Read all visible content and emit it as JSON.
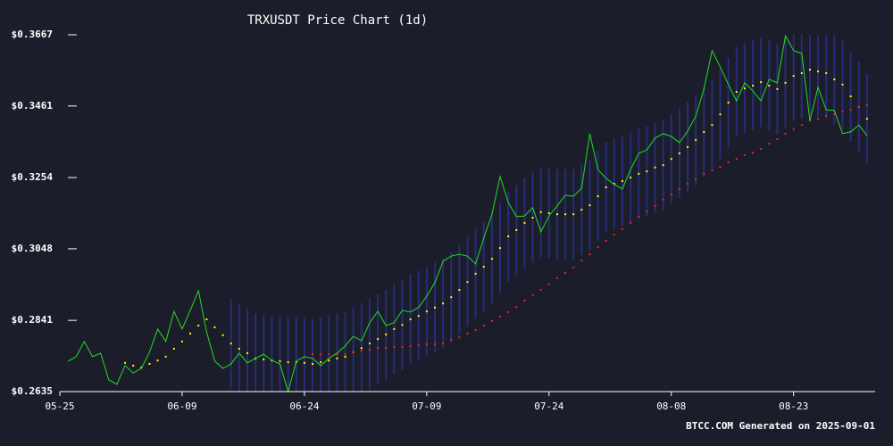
{
  "chart_data": {
    "type": "line",
    "title": "TRXUSDT Price Chart (1d)",
    "footer": "BTCC.COM Generated on 2025-09-01",
    "x": [
      "05-26",
      "05-27",
      "05-28",
      "05-29",
      "05-30",
      "05-31",
      "06-01",
      "06-02",
      "06-03",
      "06-04",
      "06-05",
      "06-06",
      "06-07",
      "06-08",
      "06-09",
      "06-10",
      "06-11",
      "06-12",
      "06-13",
      "06-14",
      "06-15",
      "06-16",
      "06-17",
      "06-18",
      "06-19",
      "06-20",
      "06-21",
      "06-22",
      "06-23",
      "06-24",
      "06-25",
      "06-26",
      "06-27",
      "06-28",
      "06-29",
      "06-30",
      "07-01",
      "07-02",
      "07-03",
      "07-04",
      "07-05",
      "07-06",
      "07-07",
      "07-08",
      "07-09",
      "07-10",
      "07-11",
      "07-12",
      "07-13",
      "07-14",
      "07-15",
      "07-16",
      "07-17",
      "07-18",
      "07-19",
      "07-20",
      "07-21",
      "07-22",
      "07-23",
      "07-24",
      "07-25",
      "07-26",
      "07-27",
      "07-28",
      "07-29",
      "07-30",
      "07-31",
      "08-01",
      "08-02",
      "08-03",
      "08-04",
      "08-05",
      "08-06",
      "08-07",
      "08-08",
      "08-09",
      "08-10",
      "08-11",
      "08-12",
      "08-13",
      "08-14",
      "08-15",
      "08-16",
      "08-17",
      "08-18",
      "08-19",
      "08-20",
      "08-21",
      "08-22",
      "08-23",
      "08-24",
      "08-25",
      "08-26",
      "08-27",
      "08-28",
      "08-29",
      "08-30",
      "08-31",
      "09-01"
    ],
    "xlim": [
      "05-25",
      "09-02"
    ],
    "xticks": [
      "05-25",
      "06-09",
      "06-24",
      "07-09",
      "07-24",
      "08-08",
      "08-23"
    ],
    "ylim": [
      0.2635,
      0.3667
    ],
    "yticks": [
      {
        "value": 0.2635,
        "label": "$0.2635"
      },
      {
        "value": 0.2841,
        "label": "$0.2841"
      },
      {
        "value": 0.3048,
        "label": "$0.3048"
      },
      {
        "value": 0.3254,
        "label": "$0.3254"
      },
      {
        "value": 0.3461,
        "label": "$0.3461"
      },
      {
        "value": 0.3667,
        "label": "$0.3667"
      }
    ],
    "band": {
      "color": "#2a2f86",
      "upper": [
        null,
        null,
        null,
        null,
        null,
        null,
        null,
        null,
        null,
        null,
        null,
        null,
        null,
        null,
        null,
        null,
        null,
        null,
        null,
        null,
        0.2904,
        0.2889,
        0.2876,
        0.2861,
        0.2858,
        0.2855,
        0.2853,
        0.285,
        0.285,
        0.2848,
        0.2845,
        0.285,
        0.2855,
        0.2861,
        0.2866,
        0.2879,
        0.2891,
        0.2904,
        0.2917,
        0.293,
        0.2946,
        0.2958,
        0.2974,
        0.2984,
        0.2997,
        0.3008,
        0.302,
        0.3038,
        0.3059,
        0.3082,
        0.3106,
        0.3126,
        0.3149,
        0.318,
        0.3214,
        0.3232,
        0.3253,
        0.3268,
        0.3284,
        0.3281,
        0.3278,
        0.3278,
        0.3278,
        0.3291,
        0.3304,
        0.333,
        0.3356,
        0.3366,
        0.3374,
        0.3384,
        0.3395,
        0.3402,
        0.3413,
        0.342,
        0.3438,
        0.3454,
        0.3472,
        0.3493,
        0.3516,
        0.3536,
        0.3567,
        0.3601,
        0.3632,
        0.3642,
        0.365,
        0.366,
        0.365,
        0.364,
        0.3658,
        0.3678,
        0.3686,
        0.3696,
        0.3691,
        0.3686,
        0.3668,
        0.3653,
        0.3619,
        0.3588,
        0.3554
      ],
      "lower": [
        null,
        null,
        null,
        null,
        null,
        null,
        null,
        null,
        null,
        null,
        null,
        null,
        null,
        null,
        null,
        null,
        null,
        null,
        null,
        null,
        0.2644,
        0.2629,
        0.2616,
        0.2601,
        0.2598,
        0.2595,
        0.2593,
        0.259,
        0.259,
        0.2588,
        0.2585,
        0.259,
        0.2595,
        0.2601,
        0.2606,
        0.2619,
        0.2631,
        0.2644,
        0.2657,
        0.267,
        0.2686,
        0.2698,
        0.2714,
        0.2724,
        0.2737,
        0.2748,
        0.276,
        0.2778,
        0.2799,
        0.2822,
        0.2846,
        0.2866,
        0.2889,
        0.292,
        0.2954,
        0.2972,
        0.2993,
        0.3008,
        0.3024,
        0.3021,
        0.3018,
        0.3018,
        0.3018,
        0.3031,
        0.3044,
        0.307,
        0.3096,
        0.3106,
        0.3114,
        0.3124,
        0.3135,
        0.3142,
        0.3153,
        0.316,
        0.3178,
        0.3194,
        0.3212,
        0.3233,
        0.3256,
        0.3276,
        0.3307,
        0.3341,
        0.3372,
        0.3382,
        0.339,
        0.34,
        0.339,
        0.338,
        0.3398,
        0.3418,
        0.3426,
        0.3436,
        0.3431,
        0.3426,
        0.3408,
        0.3393,
        0.3359,
        0.3328,
        0.3294
      ]
    },
    "series": [
      {
        "color": "#22dd22",
        "style": "line",
        "values": [
          0.2723,
          0.2736,
          0.278,
          0.2736,
          0.2746,
          0.2669,
          0.2656,
          0.271,
          0.2689,
          0.2702,
          0.2749,
          0.2816,
          0.278,
          0.2867,
          0.2816,
          0.287,
          0.2927,
          0.2808,
          0.2723,
          0.2702,
          0.2715,
          0.2746,
          0.2718,
          0.2731,
          0.2743,
          0.2725,
          0.2715,
          0.2635,
          0.2723,
          0.2736,
          0.2731,
          0.271,
          0.2731,
          0.2746,
          0.2767,
          0.2795,
          0.2782,
          0.2834,
          0.2867,
          0.2826,
          0.2834,
          0.287,
          0.2865,
          0.2878,
          0.2911,
          0.295,
          0.3012,
          0.3027,
          0.3032,
          0.3027,
          0.3004,
          0.3079,
          0.3148,
          0.3257,
          0.3182,
          0.3141,
          0.3143,
          0.3167,
          0.3097,
          0.3143,
          0.3172,
          0.3203,
          0.32,
          0.3223,
          0.3381,
          0.3277,
          0.3252,
          0.3234,
          0.3221,
          0.3277,
          0.3324,
          0.3334,
          0.3368,
          0.3381,
          0.3373,
          0.3355,
          0.3388,
          0.3432,
          0.351,
          0.3621,
          0.3574,
          0.3523,
          0.3476,
          0.3528,
          0.3505,
          0.3476,
          0.3538,
          0.3528,
          0.3664,
          0.3621,
          0.3613,
          0.3419,
          0.3515,
          0.345,
          0.3448,
          0.3381,
          0.3386,
          0.3406,
          0.3376
        ]
      },
      {
        "color": "#ffff00",
        "style": "dots",
        "values": [
          null,
          null,
          null,
          null,
          null,
          null,
          null,
          0.2718,
          0.271,
          0.2705,
          0.2715,
          0.2725,
          0.2736,
          0.2759,
          0.278,
          0.2803,
          0.2826,
          0.2844,
          0.2821,
          0.2798,
          0.2774,
          0.2759,
          0.2746,
          0.2731,
          0.2728,
          0.2725,
          0.2723,
          0.272,
          0.272,
          0.2718,
          0.2715,
          0.272,
          0.2725,
          0.2731,
          0.2736,
          0.2749,
          0.2761,
          0.2774,
          0.2787,
          0.28,
          0.2816,
          0.2828,
          0.2844,
          0.2854,
          0.2867,
          0.2878,
          0.289,
          0.2908,
          0.2929,
          0.2952,
          0.2976,
          0.2996,
          0.3019,
          0.305,
          0.3084,
          0.3102,
          0.3123,
          0.3138,
          0.3154,
          0.3151,
          0.3148,
          0.3148,
          0.3148,
          0.3161,
          0.3174,
          0.32,
          0.3226,
          0.3236,
          0.3244,
          0.3254,
          0.3265,
          0.3272,
          0.3283,
          0.329,
          0.3308,
          0.3324,
          0.3342,
          0.3363,
          0.3386,
          0.3406,
          0.3437,
          0.3471,
          0.3502,
          0.3512,
          0.352,
          0.353,
          0.352,
          0.351,
          0.3528,
          0.3548,
          0.3556,
          0.3566,
          0.3561,
          0.3556,
          0.3538,
          0.3523,
          0.3489,
          0.3458,
          0.3424
        ]
      },
      {
        "color": "#ee2222",
        "style": "dots",
        "values": [
          null,
          null,
          null,
          null,
          null,
          null,
          null,
          null,
          null,
          null,
          null,
          null,
          null,
          null,
          null,
          null,
          null,
          null,
          null,
          null,
          null,
          null,
          null,
          null,
          null,
          null,
          null,
          null,
          null,
          null,
          0.2743,
          0.2743,
          0.2743,
          0.2743,
          0.2743,
          0.2749,
          0.2754,
          0.2756,
          0.2761,
          0.2761,
          0.2764,
          0.2764,
          0.2767,
          0.2769,
          0.2772,
          0.2772,
          0.2774,
          0.2785,
          0.2792,
          0.2803,
          0.2813,
          0.2826,
          0.2839,
          0.2852,
          0.2865,
          0.288,
          0.2898,
          0.2914,
          0.2929,
          0.2945,
          0.2963,
          0.2978,
          0.2994,
          0.3014,
          0.3032,
          0.3053,
          0.3071,
          0.3089,
          0.3105,
          0.3123,
          0.3141,
          0.3156,
          0.3172,
          0.319,
          0.3205,
          0.3221,
          0.3236,
          0.3249,
          0.3265,
          0.3275,
          0.3285,
          0.3298,
          0.3308,
          0.3319,
          0.3326,
          0.3337,
          0.3352,
          0.3365,
          0.3381,
          0.3394,
          0.3406,
          0.3419,
          0.3424,
          0.3432,
          0.3437,
          0.3445,
          0.345,
          0.3458,
          0.3463
        ]
      }
    ]
  }
}
